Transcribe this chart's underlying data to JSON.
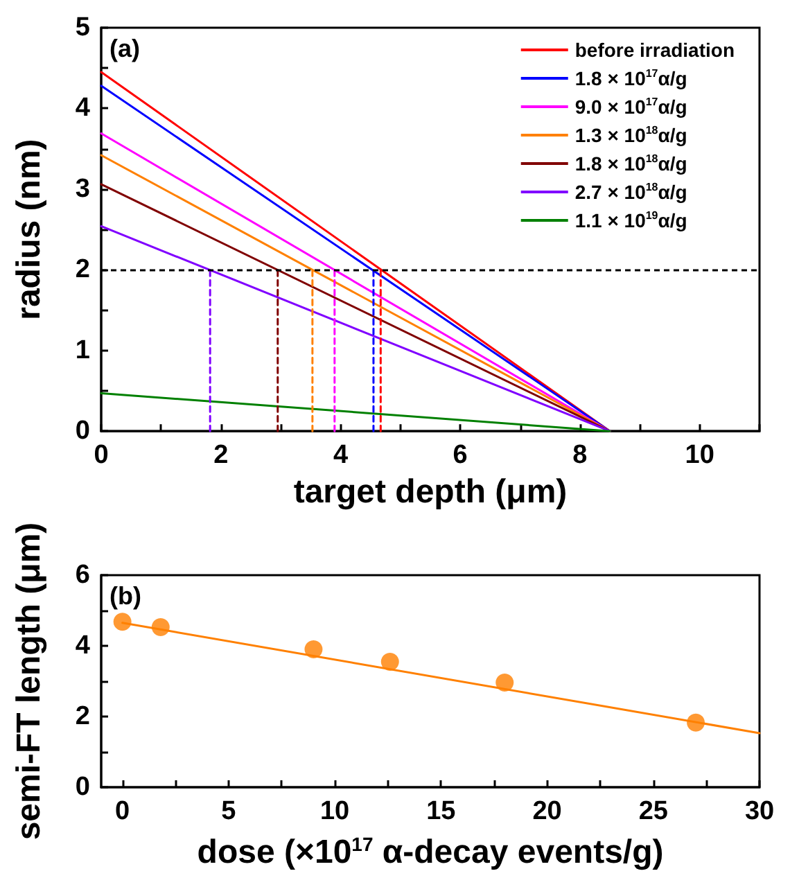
{
  "chart_data": [
    {
      "type": "line",
      "xlabel": "target depth (μm)",
      "ylabel": "radius (nm)",
      "annotations": [
        "(a)"
      ],
      "xlim": [
        0,
        11
      ],
      "xticks": [
        0,
        {
          "value": 1,
          "label": null
        },
        2,
        {
          "value": 3,
          "label": null
        },
        4,
        {
          "value": 5,
          "label": null
        },
        6,
        {
          "value": 7,
          "label": null
        },
        8,
        {
          "value": 9,
          "label": null
        },
        10,
        {
          "value": 11,
          "label": null
        }
      ],
      "ylim": [
        0,
        5
      ],
      "yticks": [
        0,
        {
          "value": 0.5,
          "label": null
        },
        1,
        {
          "value": 1.5,
          "label": null
        },
        2,
        {
          "value": 2.5,
          "label": null
        },
        3,
        {
          "value": 3.5,
          "label": null
        },
        4,
        {
          "value": 4.5,
          "label": null
        },
        5
      ],
      "grid": false,
      "legend": "top right",
      "marker": "none",
      "line_style": "solid",
      "ref_lines": [
        {
          "axis": "y",
          "value": 2,
          "color": "#000000",
          "line_style": "dashed"
        }
      ],
      "series": [
        {
          "name": "before irradiation",
          "color": "#ff0000",
          "x": [
            0,
            8.5
          ],
          "values": [
            4.45,
            0
          ]
        },
        {
          "name": "1.8 × 10$^{17}$α/g",
          "color": "#0000ff",
          "x": [
            0,
            8.5
          ],
          "values": [
            4.28,
            0
          ]
        },
        {
          "name": "9.0 × 10$^{17}$α/g",
          "color": "#ff00ff",
          "x": [
            0,
            8.5
          ],
          "values": [
            3.69,
            0
          ]
        },
        {
          "name": "1.3 × 10$^{18}$α/g",
          "color": "#ff8000",
          "x": [
            0,
            8.5
          ],
          "values": [
            3.42,
            0
          ]
        },
        {
          "name": "1.8 × 10$^{18}$α/g",
          "color": "#800000",
          "x": [
            0,
            8.5
          ],
          "values": [
            3.06,
            0
          ]
        },
        {
          "name": "2.7 × 10$^{18}$α/g",
          "color": "#8000ff",
          "x": [
            0,
            8.5
          ],
          "values": [
            2.54,
            0
          ]
        },
        {
          "name": "1.1 × 10$^{19}$α/g",
          "color": "#008000",
          "x": [
            0,
            8.5
          ],
          "values": [
            0.47,
            0
          ]
        },
        {
          "color": "#ff0000",
          "line_style": "dashed",
          "x": [
            4.67,
            4.67
          ],
          "values": [
            0,
            2
          ]
        },
        {
          "color": "#0000ff",
          "line_style": "dashed",
          "x": [
            4.55,
            4.55
          ],
          "values": [
            0,
            2
          ]
        },
        {
          "color": "#ff00ff",
          "line_style": "dashed",
          "x": [
            3.9,
            3.9
          ],
          "values": [
            0,
            2
          ]
        },
        {
          "color": "#ff8000",
          "line_style": "dashed",
          "x": [
            3.53,
            3.53
          ],
          "values": [
            0,
            2
          ]
        },
        {
          "color": "#800000",
          "line_style": "dashed",
          "x": [
            2.95,
            2.95
          ],
          "values": [
            0,
            2
          ]
        },
        {
          "color": "#8000ff",
          "line_style": "dashed",
          "x": [
            1.82,
            1.82
          ],
          "values": [
            0,
            2
          ]
        }
      ]
    },
    {
      "type": "scatter",
      "xlabel": "dose (×10$^{17}$ α-decay events/g)",
      "ylabel": "semi-FT length (μm)",
      "annotations": [
        "(b)"
      ],
      "xlim": [
        -1,
        30
      ],
      "xticks": [
        0,
        {
          "value": 2.5,
          "label": null
        },
        5,
        {
          "value": 7.5,
          "label": null
        },
        10,
        {
          "value": 12.5,
          "label": null
        },
        15,
        {
          "value": 17.5,
          "label": null
        },
        20,
        {
          "value": 22.5,
          "label": null
        },
        25,
        {
          "value": 27.5,
          "label": null
        },
        30
      ],
      "ylim": [
        0,
        6
      ],
      "yticks": [
        0,
        {
          "value": 1,
          "label": null
        },
        2,
        {
          "value": 3,
          "label": null
        },
        4,
        {
          "value": 5,
          "label": null
        },
        6
      ],
      "grid": false,
      "marker": "circle",
      "series": [
        {
          "color": "#ff8000",
          "x": [
            0,
            1.8,
            9,
            12.6,
            18,
            27
          ],
          "values": [
            4.68,
            4.53,
            3.9,
            3.55,
            2.96,
            1.83
          ]
        },
        {
          "type": "line",
          "color": "#ff8000",
          "marker": "none",
          "line_style": "solid",
          "x": [
            0,
            30
          ],
          "values": [
            4.65,
            1.53
          ]
        }
      ]
    }
  ]
}
